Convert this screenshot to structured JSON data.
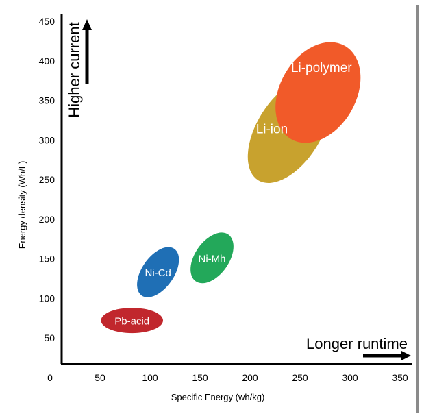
{
  "chart_data": {
    "type": "scatter",
    "title": "",
    "xlabel": "Specific Energy (wh/kg)",
    "ylabel": "Energy density (Wh/L)",
    "x_ticks": [
      "0",
      "50",
      "100",
      "150",
      "200",
      "250",
      "300",
      "350"
    ],
    "y_ticks": [
      "50",
      "100",
      "150",
      "200",
      "250",
      "300",
      "350",
      "400",
      "450"
    ],
    "xlim": [
      0,
      350
    ],
    "ylim": [
      25,
      450
    ],
    "grid": false,
    "regions": [
      {
        "name": "Pb-acid",
        "x": 82,
        "y": 72,
        "rx": 31,
        "ry": 16,
        "angle": 0,
        "color": "#c1272d"
      },
      {
        "name": "Ni-Cd",
        "x": 108,
        "y": 133,
        "rx": 16,
        "ry": 36,
        "angle": 35,
        "color": "#1f6fb5"
      },
      {
        "name": "Ni-Mh",
        "x": 162,
        "y": 151,
        "rx": 17,
        "ry": 36,
        "angle": 35,
        "color": "#23a85a"
      },
      {
        "name": "Li-ion",
        "x": 239,
        "y": 312,
        "rx": 32,
        "ry": 74,
        "angle": 32,
        "color": "#c8a22e"
      },
      {
        "name": "Li-polymer",
        "x": 268,
        "y": 360,
        "rx": 38,
        "ry": 68,
        "angle": 30,
        "color": "#f15a29"
      }
    ],
    "annotations": {
      "y_arrow_label": "Higher current",
      "x_arrow_label": "Longer runtime"
    }
  }
}
